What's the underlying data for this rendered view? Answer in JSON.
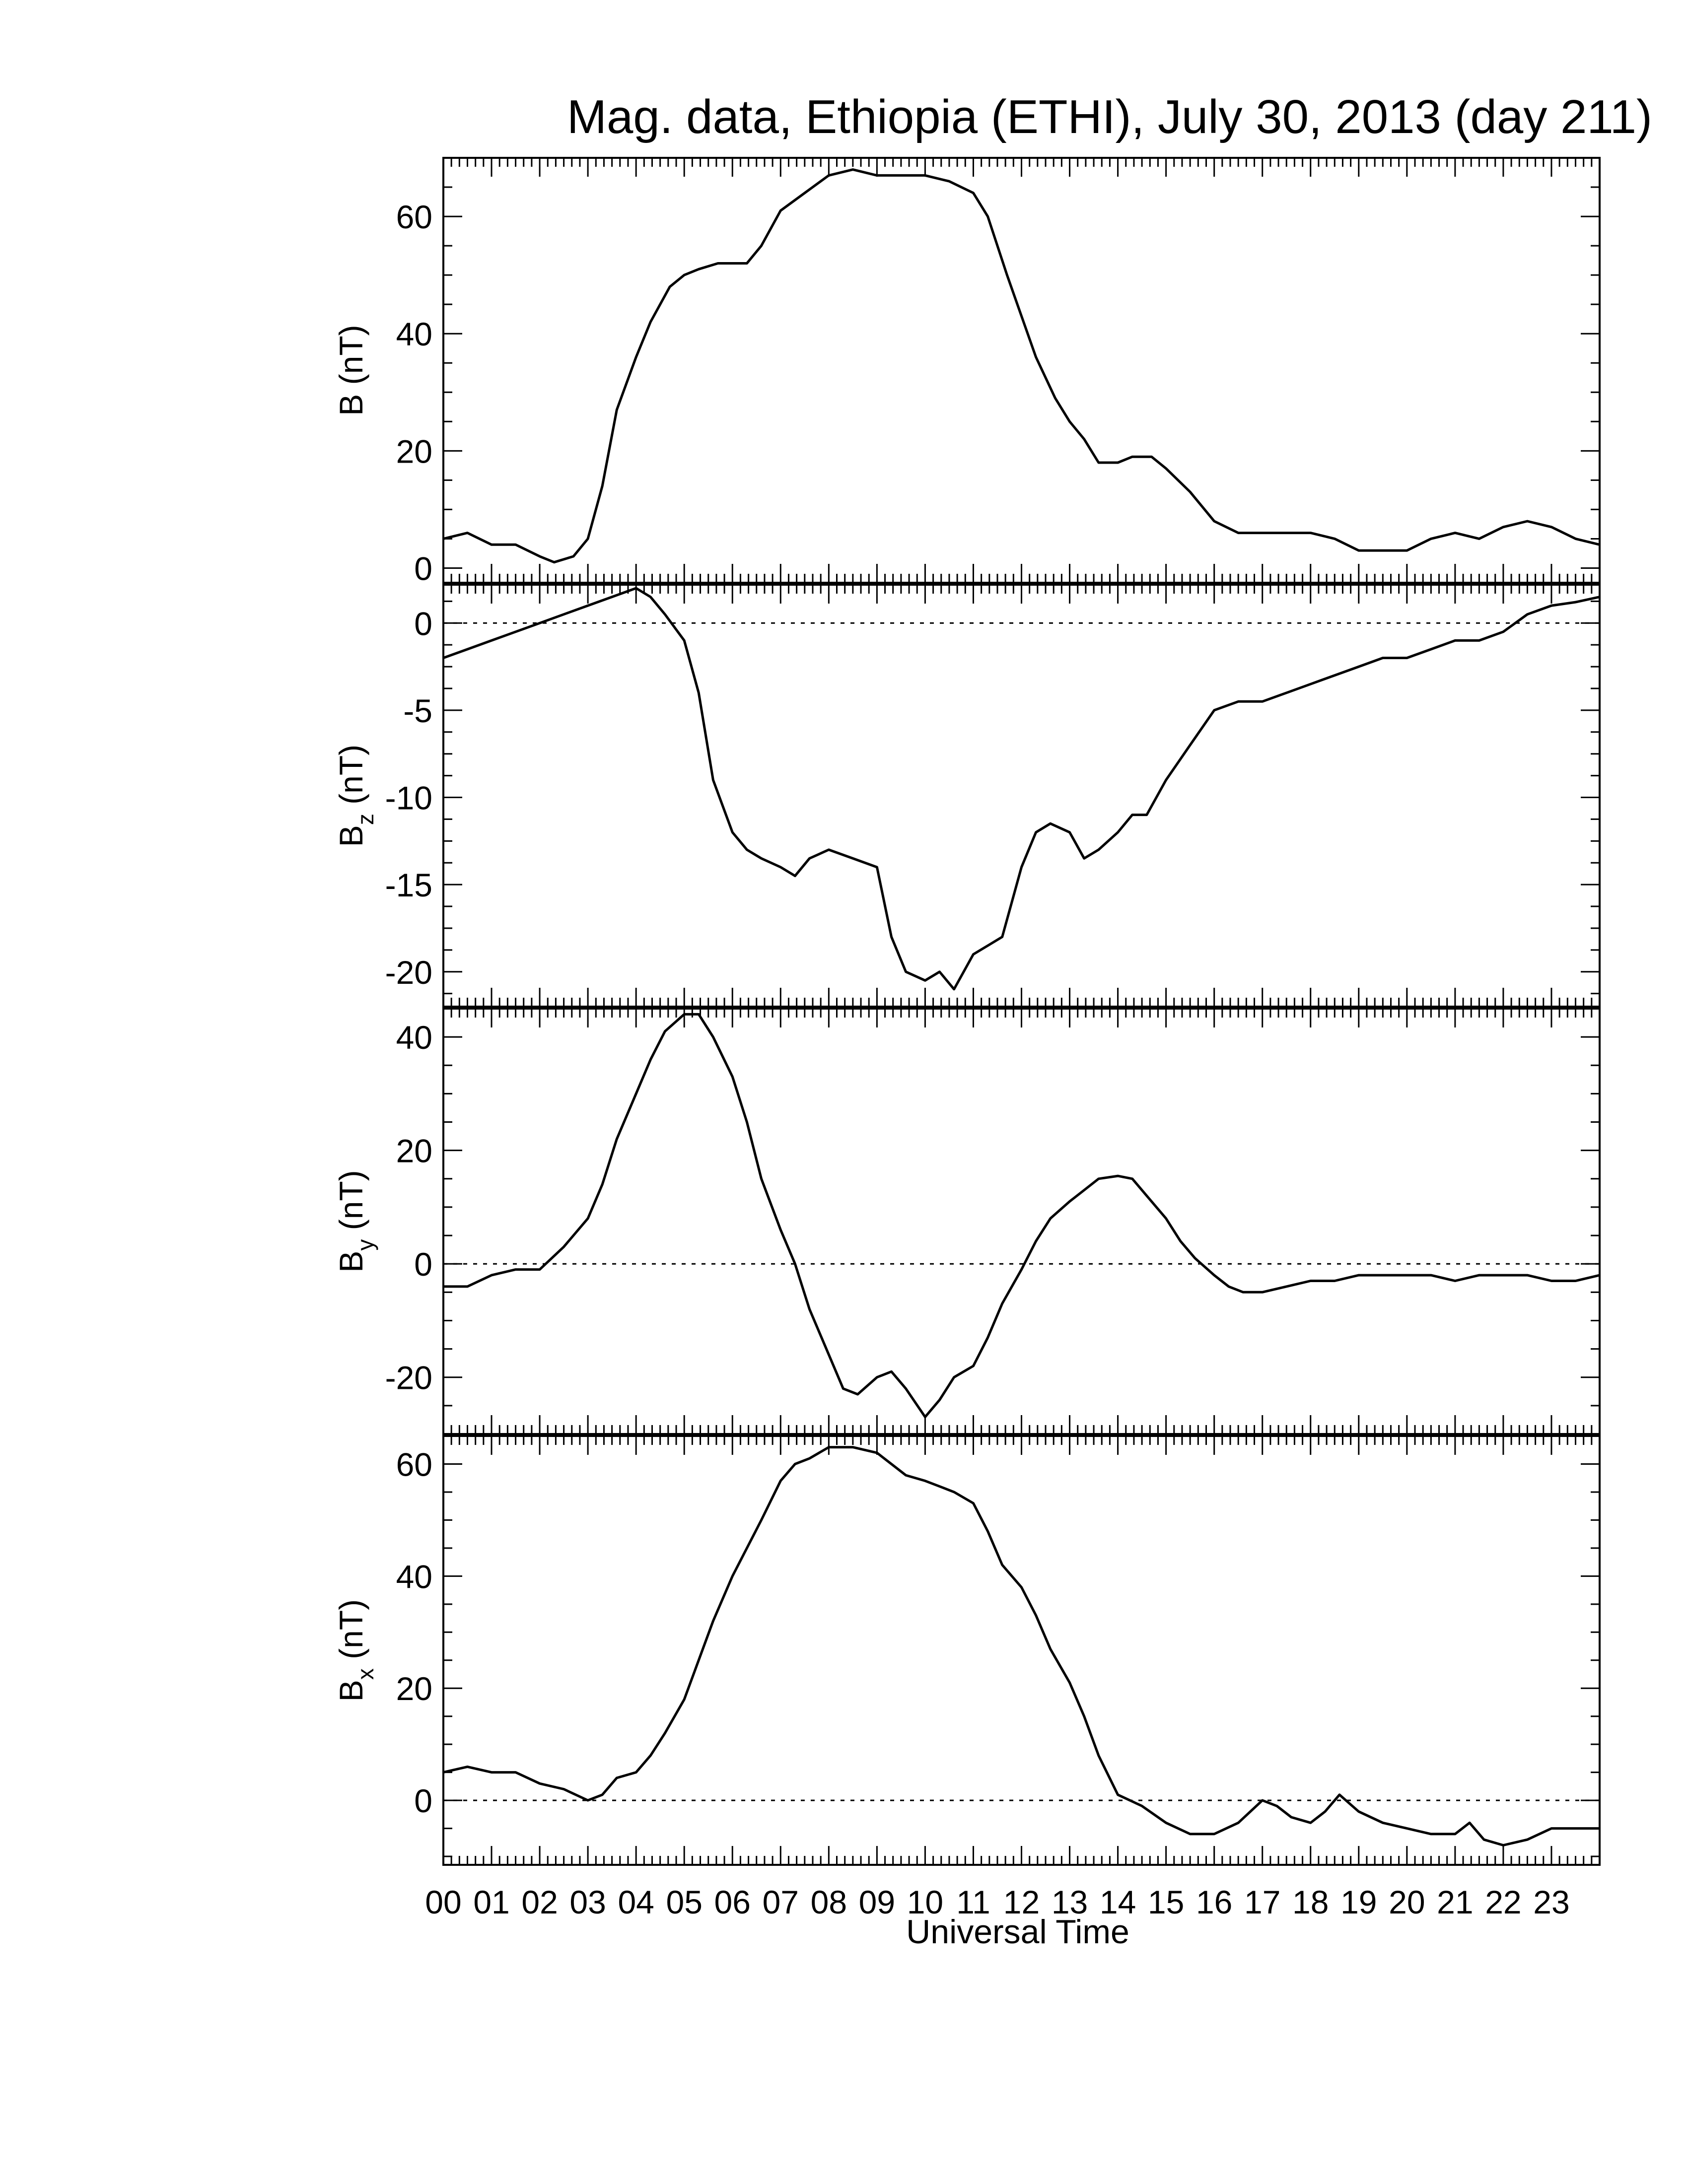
{
  "chart_data": {
    "title": "Mag. data, Ethiopia (ETHI), July 30, 2013 (day 211)",
    "xlabel": "Universal Time",
    "x_ticks": [
      "00",
      "01",
      "02",
      "03",
      "04",
      "05",
      "06",
      "07",
      "08",
      "09",
      "10",
      "11",
      "12",
      "13",
      "14",
      "15",
      "16",
      "17",
      "18",
      "19",
      "20",
      "21",
      "22",
      "23"
    ],
    "xlim": [
      0,
      24
    ],
    "line_color": "#000000",
    "panels": [
      {
        "type": "line",
        "label_main": "B",
        "label_sub": "",
        "label_unit": "(nT)",
        "ylim": [
          -2.5,
          70
        ],
        "yticks": [
          0,
          20,
          40,
          60
        ],
        "zero_line": false,
        "x": [
          0,
          0.5,
          1,
          1.5,
          2,
          2.3,
          2.7,
          3,
          3.3,
          3.6,
          4,
          4.3,
          4.7,
          5,
          5.3,
          5.7,
          6,
          6.3,
          6.6,
          7,
          7.5,
          8,
          8.5,
          9,
          9.5,
          10,
          10.5,
          11,
          11.3,
          11.7,
          12,
          12.3,
          12.7,
          13,
          13.3,
          13.6,
          14,
          14.3,
          14.7,
          15,
          15.5,
          16,
          16.5,
          17,
          17.5,
          18,
          18.5,
          19,
          19.5,
          20,
          20.5,
          21,
          21.5,
          22,
          22.5,
          23,
          23.5,
          24
        ],
        "y": [
          5,
          6,
          4,
          4,
          2,
          1,
          2,
          5,
          14,
          27,
          36,
          42,
          48,
          50,
          51,
          52,
          52,
          52,
          55,
          61,
          64,
          67,
          68,
          67,
          67,
          67,
          66,
          64,
          60,
          50,
          43,
          36,
          29,
          25,
          22,
          18,
          18,
          19,
          19,
          17,
          13,
          8,
          6,
          6,
          6,
          6,
          5,
          3,
          3,
          3,
          5,
          6,
          5,
          7,
          8,
          7,
          5,
          4
        ]
      },
      {
        "type": "line",
        "label_main": "B",
        "label_sub": "z",
        "label_unit": "(nT)",
        "ylim": [
          -22,
          2.2
        ],
        "yticks": [
          0,
          -5,
          -10,
          -15,
          -20
        ],
        "zero_line": true,
        "x": [
          0,
          0.5,
          1,
          1.5,
          2,
          2.5,
          3,
          3.5,
          4,
          4.3,
          4.6,
          5,
          5.3,
          5.6,
          6,
          6.3,
          6.6,
          7,
          7.3,
          7.6,
          8,
          8.5,
          9,
          9.3,
          9.6,
          10,
          10.3,
          10.6,
          11,
          11.3,
          11.6,
          12,
          12.3,
          12.6,
          13,
          13.3,
          13.6,
          14,
          14.3,
          14.6,
          15,
          15.5,
          16,
          16.5,
          17,
          17.5,
          18,
          18.5,
          19,
          19.5,
          20,
          20.5,
          21,
          21.5,
          22,
          22.5,
          23,
          23.5,
          24
        ],
        "y": [
          -2,
          -1.5,
          -1,
          -0.5,
          0,
          0.5,
          1,
          1.5,
          2,
          1.5,
          0.5,
          -1,
          -4,
          -9,
          -12,
          -13,
          -13.5,
          -14,
          -14.5,
          -13.5,
          -13,
          -13.5,
          -14,
          -18,
          -20,
          -20.5,
          -20,
          -21,
          -19,
          -18.5,
          -18,
          -14,
          -12,
          -11.5,
          -12,
          -13.5,
          -13,
          -12,
          -11,
          -11,
          -9,
          -7,
          -5,
          -4.5,
          -4.5,
          -4,
          -3.5,
          -3,
          -2.5,
          -2,
          -2,
          -1.5,
          -1,
          -1,
          -0.5,
          0.5,
          1,
          1.2,
          1.5
        ]
      },
      {
        "type": "line",
        "label_main": "B",
        "label_sub": "y",
        "label_unit": "(nT)",
        "ylim": [
          -30,
          45
        ],
        "yticks": [
          40,
          20,
          0,
          -20
        ],
        "zero_line": true,
        "x": [
          0,
          0.5,
          1,
          1.5,
          2,
          2.5,
          3,
          3.3,
          3.6,
          4,
          4.3,
          4.6,
          5,
          5.3,
          5.6,
          6,
          6.3,
          6.6,
          7,
          7.3,
          7.6,
          8,
          8.3,
          8.6,
          9,
          9.3,
          9.6,
          10,
          10.3,
          10.6,
          11,
          11.3,
          11.6,
          12,
          12.3,
          12.6,
          13,
          13.3,
          13.6,
          14,
          14.3,
          14.6,
          15,
          15.3,
          15.6,
          16,
          16.3,
          16.6,
          17,
          17.5,
          18,
          18.5,
          19,
          19.5,
          20,
          20.5,
          21,
          21.5,
          22,
          22.5,
          23,
          23.5,
          24
        ],
        "y": [
          -4,
          -4,
          -2,
          -1,
          -1,
          3,
          8,
          14,
          22,
          30,
          36,
          41,
          44,
          44,
          40,
          33,
          25,
          15,
          6,
          0,
          -8,
          -16,
          -22,
          -23,
          -20,
          -19,
          -22,
          -27,
          -24,
          -20,
          -18,
          -13,
          -7,
          -1,
          4,
          8,
          11,
          13,
          15,
          15.5,
          15,
          12,
          8,
          4,
          1,
          -2,
          -4,
          -5,
          -5,
          -4,
          -3,
          -3,
          -2,
          -2,
          -2,
          -2,
          -3,
          -2,
          -2,
          -2,
          -3,
          -3,
          -2
        ]
      },
      {
        "type": "line",
        "label_main": "B",
        "label_sub": "x",
        "label_unit": "(nT)",
        "ylim": [
          -11.5,
          65
        ],
        "yticks": [
          60,
          40,
          20,
          0
        ],
        "zero_line": true,
        "x": [
          0,
          0.5,
          1,
          1.5,
          2,
          2.5,
          3,
          3.3,
          3.6,
          4,
          4.3,
          4.6,
          5,
          5.3,
          5.6,
          6,
          6.3,
          6.6,
          7,
          7.3,
          7.6,
          8,
          8.5,
          9,
          9.3,
          9.6,
          10,
          10.3,
          10.6,
          11,
          11.3,
          11.6,
          12,
          12.3,
          12.6,
          13,
          13.3,
          13.6,
          14,
          14.5,
          15,
          15.5,
          16,
          16.5,
          17,
          17.3,
          17.6,
          18,
          18.3,
          18.6,
          19,
          19.5,
          20,
          20.5,
          21,
          21.3,
          21.6,
          22,
          22.5,
          23,
          23.5,
          24
        ],
        "y": [
          5,
          6,
          5,
          5,
          3,
          2,
          0,
          1,
          4,
          5,
          8,
          12,
          18,
          25,
          32,
          40,
          45,
          50,
          57,
          60,
          61,
          63,
          63,
          62,
          60,
          58,
          57,
          56,
          55,
          53,
          48,
          42,
          38,
          33,
          27,
          21,
          15,
          8,
          1,
          -1,
          -4,
          -6,
          -6,
          -4,
          0,
          -1,
          -3,
          -4,
          -2,
          1,
          -2,
          -4,
          -5,
          -6,
          -6,
          -4,
          -7,
          -8,
          -7,
          -5,
          -5,
          -5
        ]
      }
    ]
  }
}
